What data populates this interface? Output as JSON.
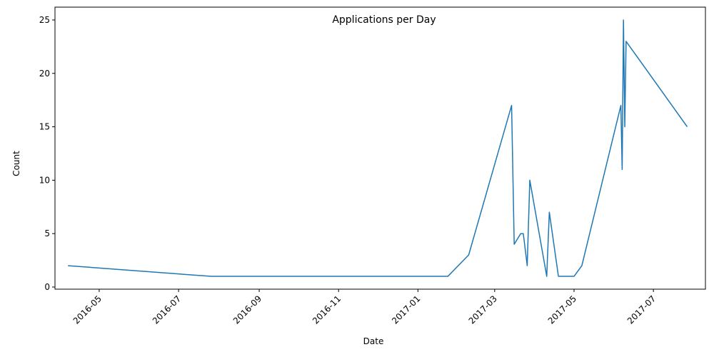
{
  "chart_data": {
    "type": "line",
    "title": "Applications per Day",
    "xlabel": "Date",
    "ylabel": "Count",
    "ylim": [
      0,
      25
    ],
    "xlim": [
      "2016-03-28",
      "2017-08-10"
    ],
    "grid": false,
    "legend": "none",
    "line_color": "#1f77b4",
    "x_ticks": [
      "2016-05-01",
      "2016-07-01",
      "2016-09-01",
      "2016-11-01",
      "2017-01-01",
      "2017-03-01",
      "2017-05-01",
      "2017-07-01"
    ],
    "x_tick_labels": [
      "2016-05",
      "2016-07",
      "2016-09",
      "2016-11",
      "2017-01",
      "2017-03",
      "2017-05",
      "2017-07"
    ],
    "y_ticks": [
      0,
      5,
      10,
      15,
      20,
      25
    ],
    "series": [
      {
        "x": [
          "2016-04-07",
          "2016-07-26",
          "2017-01-24",
          "2017-02-09",
          "2017-03-14",
          "2017-03-16",
          "2017-03-21",
          "2017-03-23",
          "2017-03-26",
          "2017-03-28",
          "2017-04-10",
          "2017-04-12",
          "2017-04-19",
          "2017-05-01",
          "2017-05-07",
          "2017-06-06",
          "2017-06-07",
          "2017-06-08",
          "2017-06-09",
          "2017-06-10",
          "2017-07-27"
        ],
        "y": [
          2,
          1,
          1,
          3,
          17,
          4,
          5,
          5,
          2,
          10,
          1,
          7,
          1,
          1,
          2,
          17,
          11,
          25,
          15,
          23,
          15
        ]
      }
    ]
  }
}
